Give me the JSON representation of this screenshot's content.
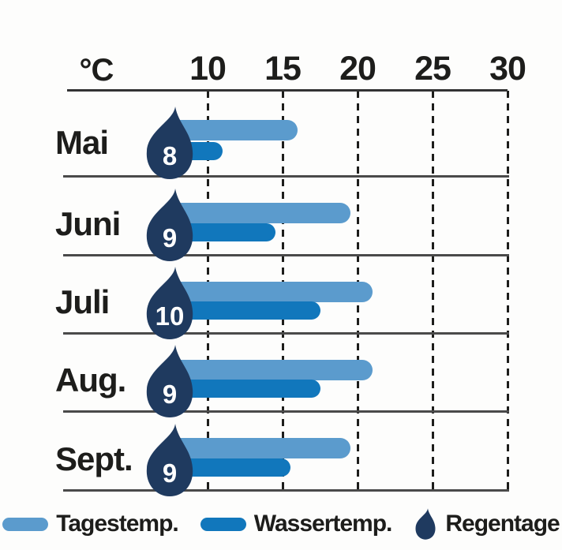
{
  "chart_data": {
    "type": "bar",
    "orientation": "horizontal",
    "title": "",
    "unit_label": "°C",
    "axis": {
      "min": 0,
      "max": 30,
      "ticks": [
        10,
        15,
        20,
        25,
        30
      ],
      "position": "top"
    },
    "grid": "dashed-vertical",
    "legend_position": "bottom",
    "categories": [
      "Mai",
      "Juni",
      "Juli",
      "Aug.",
      "Sept."
    ],
    "series": [
      {
        "name": "Tagestemp.",
        "color": "#5B9BCD",
        "values": [
          16,
          19.5,
          21,
          21,
          19.5
        ]
      },
      {
        "name": "Wassertemp.",
        "color": "#1177BC",
        "values": [
          11,
          14.5,
          17.5,
          17.5,
          15.5
        ]
      },
      {
        "name": "Regentage",
        "color": "#1F3A5F",
        "values": [
          8,
          9,
          10,
          9,
          9
        ]
      }
    ]
  },
  "colors": {
    "day_temp": "#5B9BCD",
    "water_temp": "#1177BC",
    "rain_drop": "#1F3A5F",
    "text": "#1d1d1b",
    "separator": "#4a4a4a",
    "background": "#fdfdfc"
  }
}
